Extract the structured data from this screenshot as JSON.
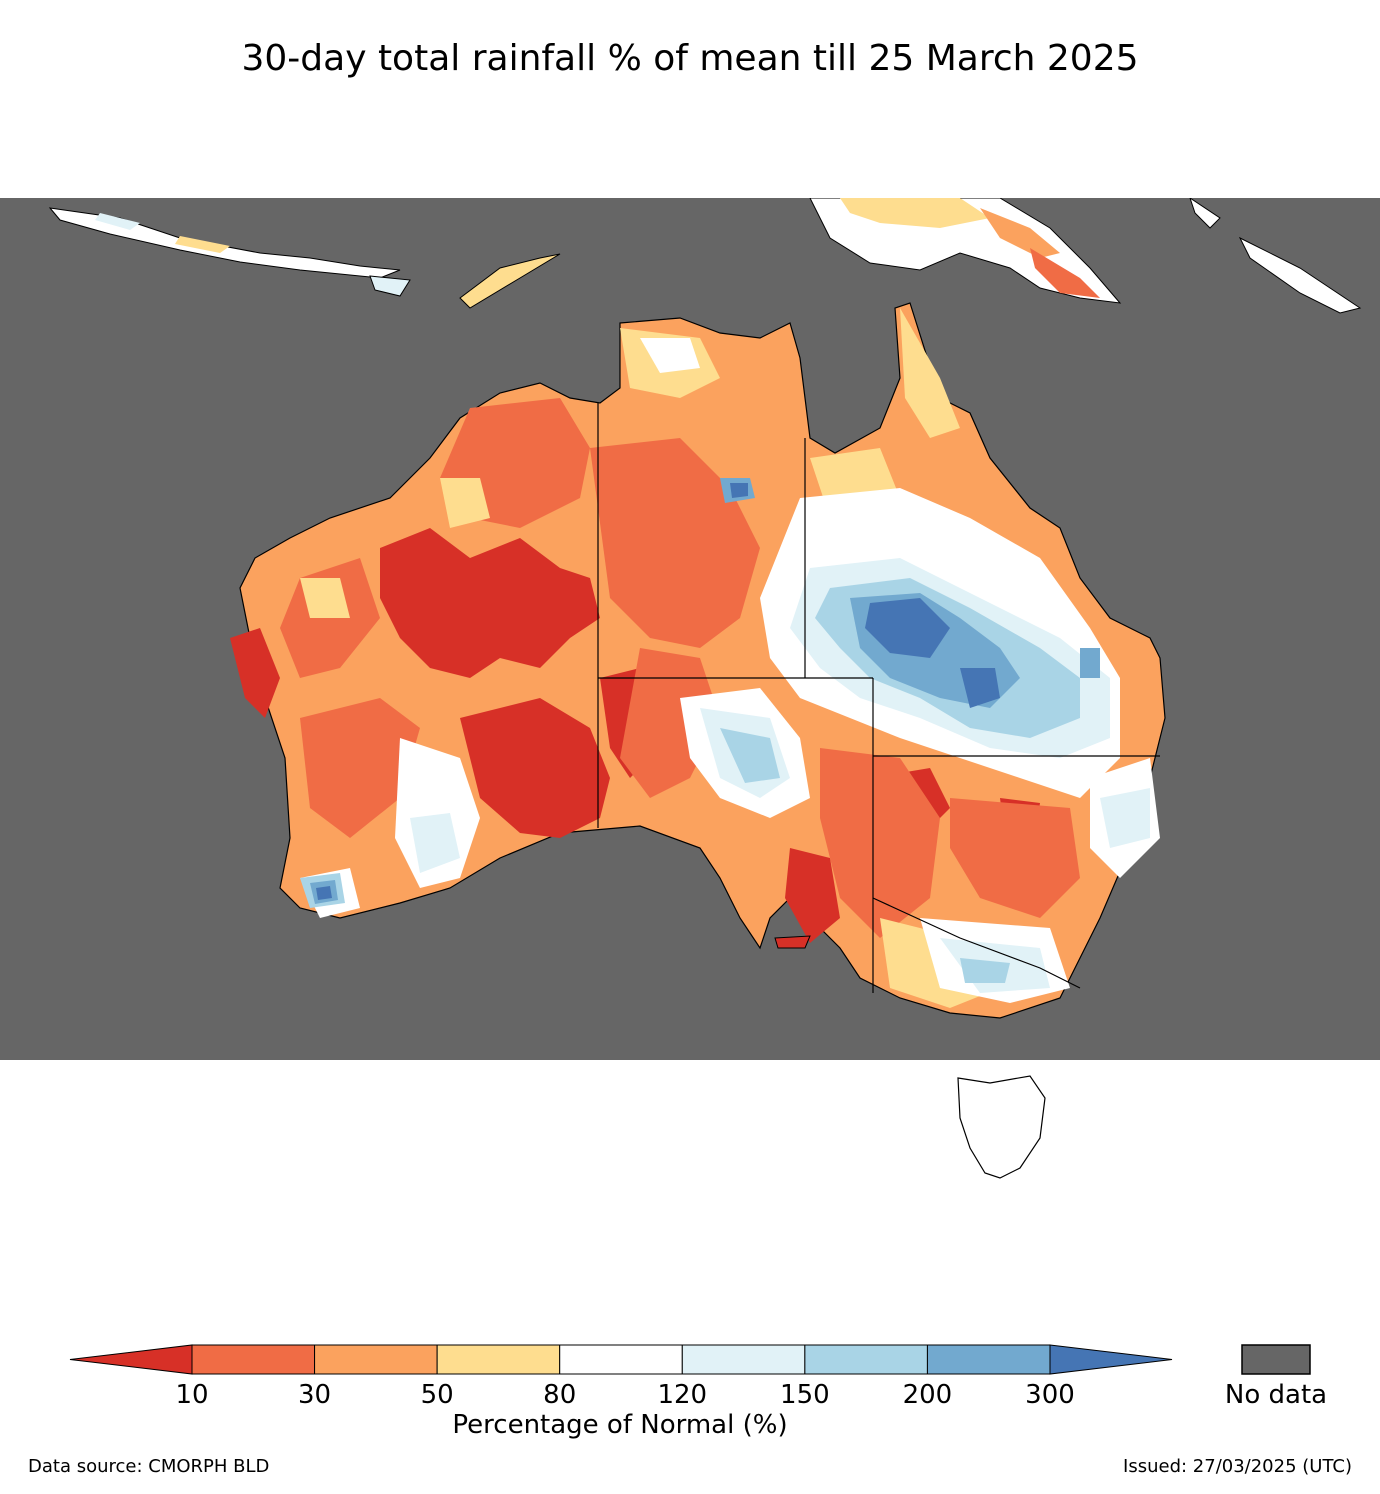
{
  "title": "30-day total rainfall % of mean till 25 March 2025",
  "colorbar": {
    "label": "Percentage of Normal (%)",
    "ticks": [
      "10",
      "30",
      "50",
      "80",
      "120",
      "150",
      "200",
      "300"
    ],
    "colors": [
      "#d73027",
      "#f06c45",
      "#fba25e",
      "#fedd8f",
      "#ffffff",
      "#e1f2f7",
      "#a9d4e6",
      "#72a9cf",
      "#4575b4"
    ],
    "nodata_label": "No data",
    "nodata_color": "#666666"
  },
  "footer": {
    "source": "Data source: CMORPH BLD",
    "issued": "Issued: 27/03/2025 (UTC)"
  }
}
